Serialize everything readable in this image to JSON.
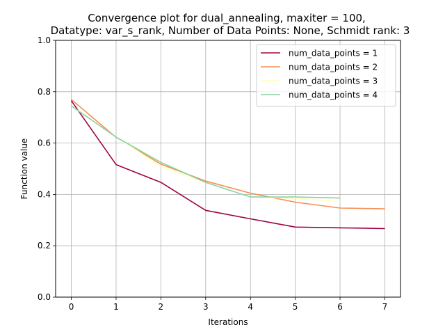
{
  "chart_data": {
    "type": "line",
    "title_lines": [
      "Convergence plot for dual_annealing, maxiter = 100,",
      "Datatype: var_s_rank, Number of Data Points: None, Schmidt rank: 3"
    ],
    "xlabel": "Iterations",
    "ylabel": "Function value",
    "xlim": [
      -0.35,
      7.35
    ],
    "ylim": [
      0.0,
      1.0
    ],
    "xticks": [
      0,
      1,
      2,
      3,
      4,
      5,
      6,
      7
    ],
    "yticks": [
      0.0,
      0.2,
      0.4,
      0.6,
      0.8,
      1.0
    ],
    "xtick_labels": [
      "0",
      "1",
      "2",
      "3",
      "4",
      "5",
      "6",
      "7"
    ],
    "ytick_labels": [
      "0.0",
      "0.2",
      "0.4",
      "0.6",
      "0.8",
      "1.0"
    ],
    "grid": true,
    "legend_position": "top-right",
    "series": [
      {
        "name": "num_data_points = 1",
        "color": "#9e0142",
        "x": [
          0,
          1,
          2,
          3,
          4,
          5,
          6,
          7
        ],
        "y": [
          0.765,
          0.516,
          0.447,
          0.338,
          0.305,
          0.273,
          0.27,
          0.267
        ]
      },
      {
        "name": "num_data_points = 2",
        "color": "#f88d52",
        "x": [
          0,
          1,
          2,
          3,
          4,
          5,
          6,
          7
        ],
        "y": [
          0.77,
          0.622,
          0.518,
          0.452,
          0.405,
          0.37,
          0.347,
          0.344
        ]
      },
      {
        "name": "num_data_points = 3",
        "color": "#ffffbe",
        "x": [
          0,
          1,
          2,
          3,
          4,
          5,
          6
        ],
        "y": [
          0.745,
          0.623,
          0.51,
          0.447,
          0.39,
          0.385,
          0.372
        ]
      },
      {
        "name": "num_data_points = 4",
        "color": "#88d1a4",
        "x": [
          0,
          1,
          2,
          3,
          4,
          5,
          6
        ],
        "y": [
          0.745,
          0.623,
          0.525,
          0.447,
          0.39,
          0.39,
          0.386
        ]
      }
    ]
  }
}
